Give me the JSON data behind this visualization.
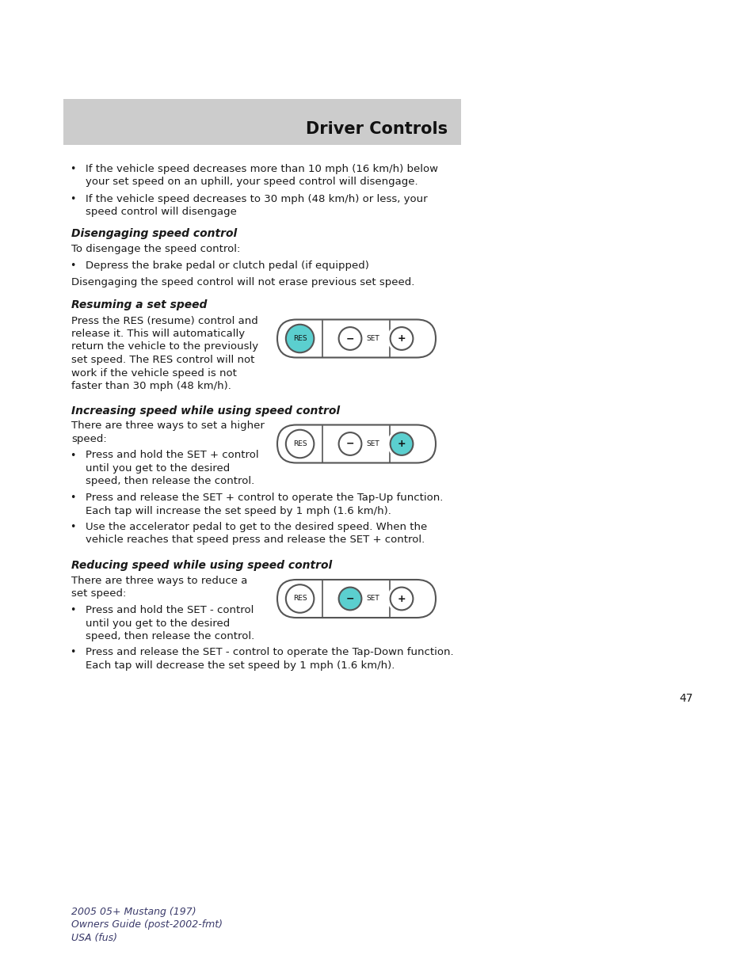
{
  "title": "Driver Controls",
  "header_bg": "#cccccc",
  "page_bg": "#ffffff",
  "page_number": "47",
  "footer_line1": "2005 05+ Mustang (197)",
  "footer_line2": "Owners Guide (post-2002-fmt)",
  "footer_line3": "USA (fus)",
  "bullet1_line1": "If the vehicle speed decreases more than 10 mph (16 km/h) below",
  "bullet1_line2": "your set speed on an uphill, your speed control will disengage.",
  "bullet2_line1": "If the vehicle speed decreases to 30 mph (48 km/h) or less, your",
  "bullet2_line2": "speed control will disengage",
  "s1_title": "Disengaging speed control",
  "s1_body1": "To disengage the speed control:",
  "s1_bullet": "Depress the brake pedal or clutch pedal (if equipped)",
  "s1_body2": "Disengaging the speed control will not erase previous set speed.",
  "s2_title": "Resuming a set speed",
  "s2_b1": "Press the RES (resume) control and",
  "s2_b2": "release it. This will automatically",
  "s2_b3": "return the vehicle to the previously",
  "s2_b4": "set speed. The RES control will not",
  "s2_b5": "work if the vehicle speed is not",
  "s2_b6": "faster than 30 mph (48 km/h).",
  "s3_title": "Increasing speed while using speed control",
  "s3_intro1": "There are three ways to set a higher",
  "s3_intro2": "speed:",
  "s3_b1_1": "Press and hold the SET + control",
  "s3_b1_2": "until you get to the desired",
  "s3_b1_3": "speed, then release the control.",
  "s3_b2": "Press and release the SET + control to operate the Tap-Up function.",
  "s3_b2b": "Each tap will increase the set speed by 1 mph (1.6 km/h).",
  "s3_b3": "Use the accelerator pedal to get to the desired speed. When the",
  "s3_b3b": "vehicle reaches that speed press and release the SET + control.",
  "s4_title": "Reducing speed while using speed control",
  "s4_intro1": "There are three ways to reduce a",
  "s4_intro2": "set speed:",
  "s4_b1_1": "Press and hold the SET - control",
  "s4_b1_2": "until you get to the desired",
  "s4_b1_3": "speed, then release the control.",
  "s4_b2": "Press and release the SET - control to operate the Tap-Down function.",
  "s4_b2b": "Each tap will decrease the set speed by 1 mph (1.6 km/h).",
  "cyan": "#5bcfcf",
  "text_dark": "#1a1a1a",
  "text_gray": "#3a3a6a",
  "border_color": "#555555"
}
